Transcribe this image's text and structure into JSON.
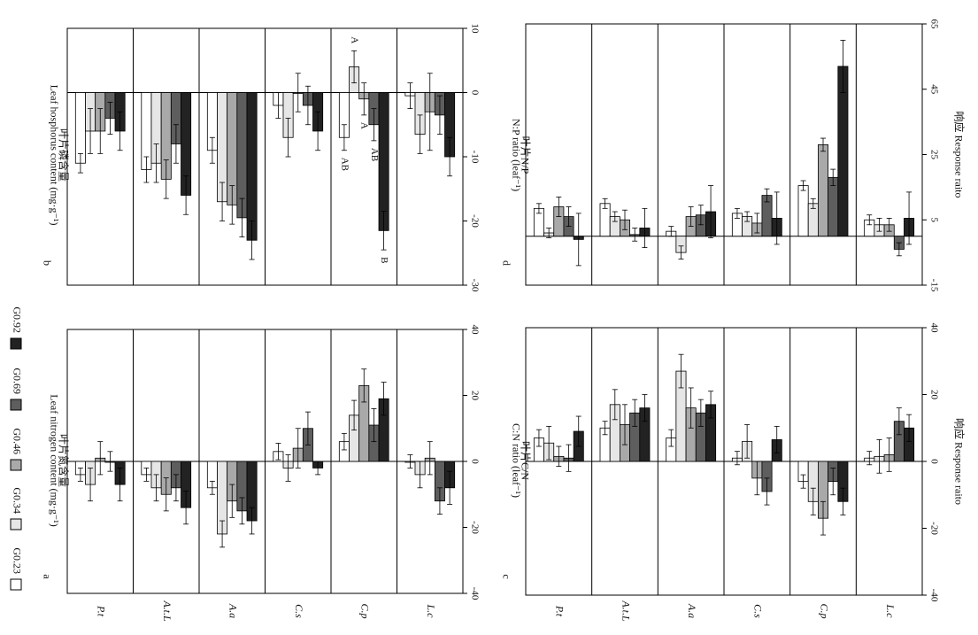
{
  "chart_data": [
    {
      "panel": "a",
      "type": "bar",
      "ylabel_zh": "叶片氮含量",
      "ylabel_en": "Leaf nitrogen content (mg·g⁻¹)",
      "categories": [
        "P.t",
        "A.t.L",
        "A.a",
        "C.s",
        "C.p",
        "L.c"
      ],
      "ylim": [
        -40,
        40
      ],
      "ticks": [
        -40,
        -20,
        0,
        20,
        40
      ],
      "series": [
        {
          "name": "G0.23",
          "values": [
            -4,
            -4,
            -8,
            3,
            6,
            0
          ],
          "errors": [
            2,
            2,
            2,
            2.5,
            2.5,
            2
          ]
        },
        {
          "name": "G0.34",
          "values": [
            -7,
            -8,
            -22,
            -2,
            14,
            -4
          ],
          "errors": [
            5,
            4,
            4,
            4,
            4.5,
            4
          ]
        },
        {
          "name": "G0.46",
          "values": [
            1,
            -10,
            -12,
            4,
            23,
            1
          ],
          "errors": [
            5,
            5,
            5,
            6,
            5,
            5
          ]
        },
        {
          "name": "G0.69",
          "values": [
            0,
            -8,
            -15,
            10,
            11,
            -12
          ],
          "errors": [
            3,
            4,
            4,
            5,
            5,
            4
          ]
        },
        {
          "name": "G0.92",
          "values": [
            -7,
            -14,
            -18,
            -2,
            19,
            -8
          ],
          "errors": [
            5,
            5,
            4,
            2,
            5,
            5
          ]
        }
      ],
      "annotations": []
    },
    {
      "panel": "b",
      "type": "bar",
      "ylabel_zh": "叶片磷含量",
      "ylabel_en": "Leaf hosphorus content (mg·g⁻¹)",
      "categories": [
        "P.t",
        "A.t.L",
        "A.a",
        "C.s",
        "C.p",
        "L.c"
      ],
      "ylim": [
        -30,
        10
      ],
      "ticks": [
        -30,
        -20,
        -10,
        0,
        10
      ],
      "series": [
        {
          "name": "G0.23",
          "values": [
            -11,
            -12,
            -9,
            -2,
            -7,
            -0.5
          ],
          "errors": [
            1.5,
            2,
            2,
            2,
            2,
            2
          ]
        },
        {
          "name": "G0.34",
          "values": [
            -6,
            -11,
            -17,
            -7,
            4,
            -6.5
          ],
          "errors": [
            3.5,
            3,
            3,
            3,
            2.5,
            3
          ]
        },
        {
          "name": "G0.46",
          "values": [
            -6,
            -13.5,
            -17.5,
            0,
            -1,
            -3
          ],
          "errors": [
            3.5,
            3,
            3,
            3,
            2.5,
            6
          ]
        },
        {
          "name": "G0.69",
          "values": [
            -4,
            -8,
            -19.5,
            -2,
            -5,
            -3.5
          ],
          "errors": [
            2.5,
            3,
            3,
            3,
            2.5,
            3
          ]
        },
        {
          "name": "G0.92",
          "values": [
            -6,
            -16,
            -23,
            -6,
            -21.5,
            -10
          ],
          "errors": [
            3,
            3,
            3,
            3,
            3,
            3
          ]
        }
      ],
      "annotations": [
        {
          "category": "C.p",
          "series": 0,
          "label": "AB"
        },
        {
          "category": "C.p",
          "series": 1,
          "label": "A"
        },
        {
          "category": "C.p",
          "series": 2,
          "label": "A"
        },
        {
          "category": "C.p",
          "series": 3,
          "label": "AB"
        },
        {
          "category": "C.p",
          "series": 4,
          "label": "B"
        }
      ]
    },
    {
      "panel": "c",
      "type": "bar",
      "ylabel_zh": "叶片C/N",
      "ylabel_en": "C:N ratio (leaf⁻¹)",
      "y2label": "响应 Response raito",
      "categories": [
        "P.t",
        "A.t.L",
        "A.a",
        "C.s",
        "C.p",
        "L.c"
      ],
      "ylim": [
        -40,
        40
      ],
      "ticks": [
        -40,
        -20,
        0,
        20,
        40
      ],
      "series": [
        {
          "name": "G0.23",
          "values": [
            7,
            10,
            7,
            1,
            -6,
            1
          ],
          "errors": [
            2.5,
            2,
            2.5,
            2,
            2,
            2
          ]
        },
        {
          "name": "G0.34",
          "values": [
            5.5,
            17,
            27,
            6,
            -12,
            1.5
          ],
          "errors": [
            5,
            4.5,
            5,
            5,
            4,
            5
          ]
        },
        {
          "name": "G0.46",
          "values": [
            1.5,
            11,
            16,
            -5,
            -17,
            2
          ],
          "errors": [
            3,
            6,
            6,
            5,
            5,
            5
          ]
        },
        {
          "name": "G0.69",
          "values": [
            1,
            14.5,
            14.5,
            -9,
            -6,
            12
          ],
          "errors": [
            4,
            4,
            4,
            4,
            4,
            4
          ]
        },
        {
          "name": "G0.92",
          "values": [
            9,
            16,
            17,
            6.5,
            -12,
            10
          ],
          "errors": [
            4.5,
            4,
            4,
            4,
            4,
            4
          ]
        }
      ],
      "annotations": []
    },
    {
      "panel": "d",
      "type": "bar",
      "ylabel_zh": "叶片N/P",
      "ylabel_en": "N:P ratio (leaf⁻¹)",
      "y2label": "响应 Response raito",
      "categories": [
        "P.t",
        "A.t.L",
        "A.a",
        "C.s",
        "C.p",
        "L.c"
      ],
      "ylim": [
        -15,
        65
      ],
      "ticks": [
        -15,
        5,
        25,
        45,
        65
      ],
      "series": [
        {
          "name": "G0.23",
          "values": [
            8.5,
            10,
            1.5,
            7,
            15.5,
            5
          ],
          "errors": [
            1.5,
            1.5,
            1.5,
            1.5,
            1.5,
            1.5
          ]
        },
        {
          "name": "G0.34",
          "values": [
            1,
            6,
            -5,
            6,
            10,
            3.5
          ],
          "errors": [
            1.5,
            1.5,
            2,
            1.5,
            1.5,
            2
          ]
        },
        {
          "name": "G0.46",
          "values": [
            9,
            5,
            6,
            4,
            28,
            3.5
          ],
          "errors": [
            3,
            3,
            3,
            3,
            2,
            2
          ]
        },
        {
          "name": "G0.69",
          "values": [
            6,
            0.5,
            6.5,
            12.5,
            18,
            -4
          ],
          "errors": [
            3,
            2,
            3,
            2,
            2.5,
            2
          ]
        },
        {
          "name": "G0.92",
          "values": [
            -1,
            2.5,
            7.5,
            5.5,
            52,
            5.5
          ],
          "errors": [
            8,
            6,
            8,
            8,
            8,
            8
          ]
        }
      ],
      "annotations": []
    }
  ],
  "panel_letters": [
    "a",
    "b",
    "c",
    "d"
  ],
  "colors": {
    "G0.23": "#ffffff",
    "G0.34": "#e6e6e6",
    "G0.46": "#a9a9a9",
    "G0.69": "#5e5e5e",
    "G0.92": "#222222",
    "axis": "#000000"
  }
}
